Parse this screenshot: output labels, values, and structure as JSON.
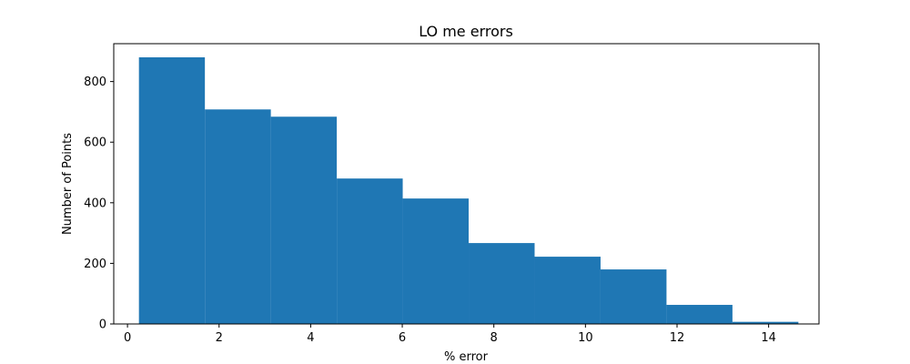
{
  "chart_data": {
    "type": "bar",
    "title": "LO me errors",
    "xlabel": "% error",
    "ylabel": "Number of Points",
    "xlim": [
      -0.3,
      15.1
    ],
    "ylim": [
      0,
      925
    ],
    "xticks": [
      0,
      2,
      4,
      6,
      8,
      10,
      12,
      14
    ],
    "yticks": [
      0,
      200,
      400,
      600,
      800
    ],
    "bin_edges": [
      0.25,
      1.69,
      3.13,
      4.57,
      6.01,
      7.45,
      8.89,
      10.33,
      11.77,
      13.21,
      14.65
    ],
    "values": [
      880,
      708,
      684,
      480,
      414,
      267,
      222,
      180,
      63,
      7
    ],
    "bar_color": "#1f77b4",
    "grid": false
  }
}
